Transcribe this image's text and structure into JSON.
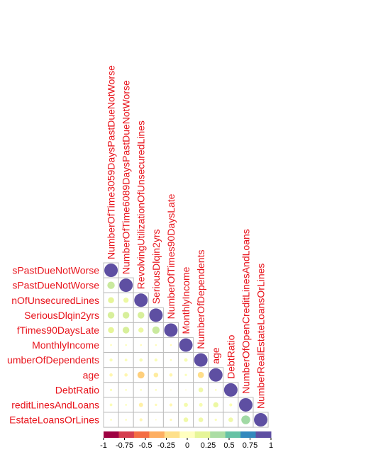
{
  "chart_data": {
    "type": "heatmap",
    "variables": [
      "NumberOfTime3059DaysPastDueNotWorse",
      "NumberOfTime6089DaysPastDueNotWorse",
      "RevolvingUtilizationOfUnsecuredLines",
      "SeriousDlqin2yrs",
      "NumberOfTimes90DaysLate",
      "MonthlyIncome",
      "NumberOfDependents",
      "age",
      "DebtRatio",
      "NumberOfOpenCreditLinesAndLoans",
      "NumberRealEstateLoansOrLines"
    ],
    "row_labels": [
      "sPastDueNotWorse",
      "sPastDueNotWorse",
      "nOfUnsecuredLines",
      "SeriousDlqin2yrs",
      "fTimes90DaysLate",
      "MonthlyIncome",
      "umberOfDependents",
      "age",
      "DebtRatio",
      "reditLinesAndLoans",
      "EstateLoansOrLines"
    ],
    "matrix": [
      [
        1.0,
        0.3,
        0.2,
        0.25,
        0.2,
        0.02,
        0.05,
        -0.06,
        0.03,
        0.04,
        0.02
      ],
      [
        0.3,
        1.0,
        0.15,
        0.25,
        0.25,
        0.02,
        0.04,
        -0.06,
        0.02,
        0.02,
        0.02
      ],
      [
        0.2,
        0.15,
        1.0,
        0.25,
        0.15,
        -0.02,
        0.06,
        -0.27,
        0.02,
        -0.1,
        -0.05
      ],
      [
        0.25,
        0.25,
        0.25,
        1.0,
        0.3,
        -0.02,
        0.05,
        -0.12,
        0.02,
        -0.03,
        -0.01
      ],
      [
        0.2,
        0.25,
        0.15,
        0.3,
        1.0,
        -0.02,
        0.02,
        -0.06,
        -0.01,
        -0.05,
        -0.03
      ],
      [
        0.02,
        0.02,
        -0.02,
        -0.02,
        -0.02,
        1.0,
        0.07,
        0.03,
        -0.01,
        0.09,
        0.12
      ],
      [
        0.05,
        0.04,
        0.06,
        0.05,
        0.02,
        0.07,
        1.0,
        -0.21,
        0.12,
        0.07,
        0.12
      ],
      [
        -0.06,
        -0.06,
        -0.27,
        -0.12,
        -0.06,
        0.03,
        -0.21,
        1.0,
        0.02,
        0.15,
        0.03
      ],
      [
        0.03,
        0.02,
        0.02,
        0.02,
        -0.01,
        -0.01,
        0.12,
        0.02,
        1.0,
        0.05,
        0.12
      ],
      [
        0.04,
        0.02,
        -0.1,
        -0.03,
        -0.05,
        0.09,
        0.07,
        0.15,
        0.05,
        1.0,
        0.43
      ],
      [
        0.02,
        0.02,
        -0.05,
        -0.01,
        -0.03,
        0.12,
        0.12,
        0.03,
        0.12,
        0.43,
        1.0
      ]
    ],
    "legend": {
      "ticks": [
        "-1",
        "-0.75",
        "-0.5",
        "-0.25",
        "0",
        "0.25",
        "0.5",
        "0.75",
        "1"
      ],
      "colors": [
        "#9e0142",
        "#d53e4f",
        "#f46d43",
        "#fdae61",
        "#fee08b",
        "#ffffbf",
        "#e6f598",
        "#abdda4",
        "#66c2a5",
        "#3288bd",
        "#5e4fa2"
      ],
      "placement": "bottom"
    },
    "label_color": "#e8141c",
    "grid": true
  }
}
